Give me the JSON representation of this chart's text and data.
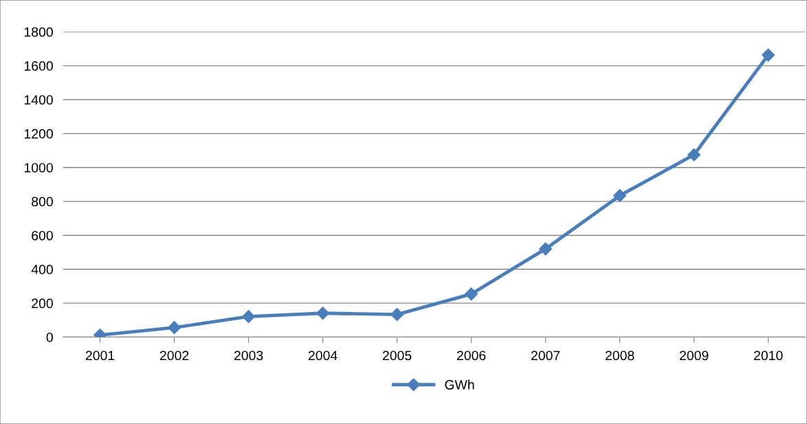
{
  "chart_data": {
    "type": "line",
    "categories": [
      "2001",
      "2002",
      "2003",
      "2004",
      "2005",
      "2006",
      "2007",
      "2008",
      "2009",
      "2010"
    ],
    "series": [
      {
        "name": "GWh",
        "color": "#4a7ebb",
        "values": [
          12,
          56,
          121,
          141,
          133,
          254,
          520,
          834,
          1075,
          1663
        ]
      }
    ],
    "ylim": [
      0,
      1800
    ],
    "yticks": [
      0,
      200,
      400,
      600,
      800,
      1000,
      1200,
      1400,
      1600,
      1800
    ],
    "grid": "y",
    "legend": "bottom",
    "marker": "diamond",
    "line_style": "solid"
  }
}
